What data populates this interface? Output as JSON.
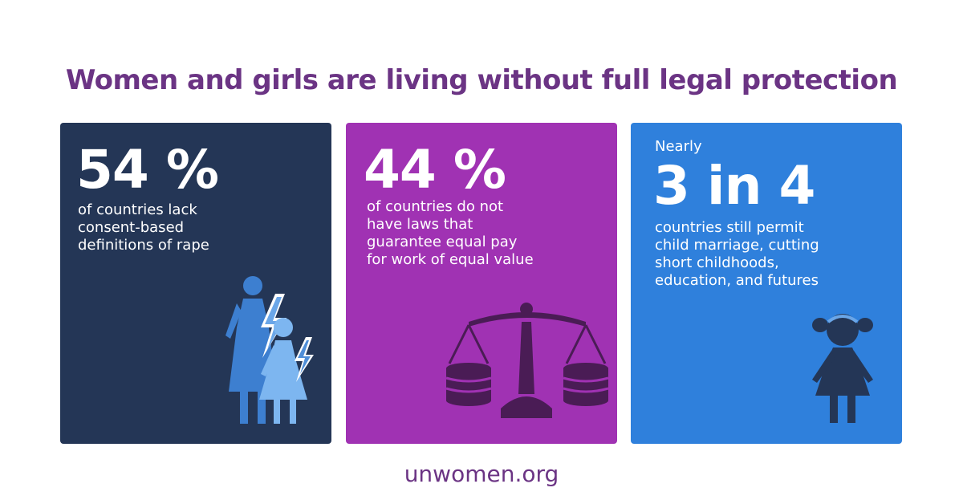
{
  "title": "Women and girls are living without full legal protection",
  "colors": {
    "title": "#6b3484",
    "card1_bg": "#243656",
    "card2_bg": "#a032b3",
    "card3_bg": "#2f80dc"
  },
  "cards": [
    {
      "stat": "54 %",
      "text": "of countries lack\nconsent-based\ndefinitions of rape",
      "icon": "woman-and-girl-lightning-icon"
    },
    {
      "stat": "44 %",
      "text": "of countries do not\nhave laws that\nguarantee equal pay\nfor work of equal value",
      "icon": "balance-scale-coins-icon"
    },
    {
      "prefix": "Nearly",
      "stat": "3 in 4",
      "text": "countries still permit\nchild marriage, cutting\nshort childhoods,\neducation, and futures",
      "icon": "girl-silhouette-icon"
    }
  ],
  "footer": "unwomen.org"
}
